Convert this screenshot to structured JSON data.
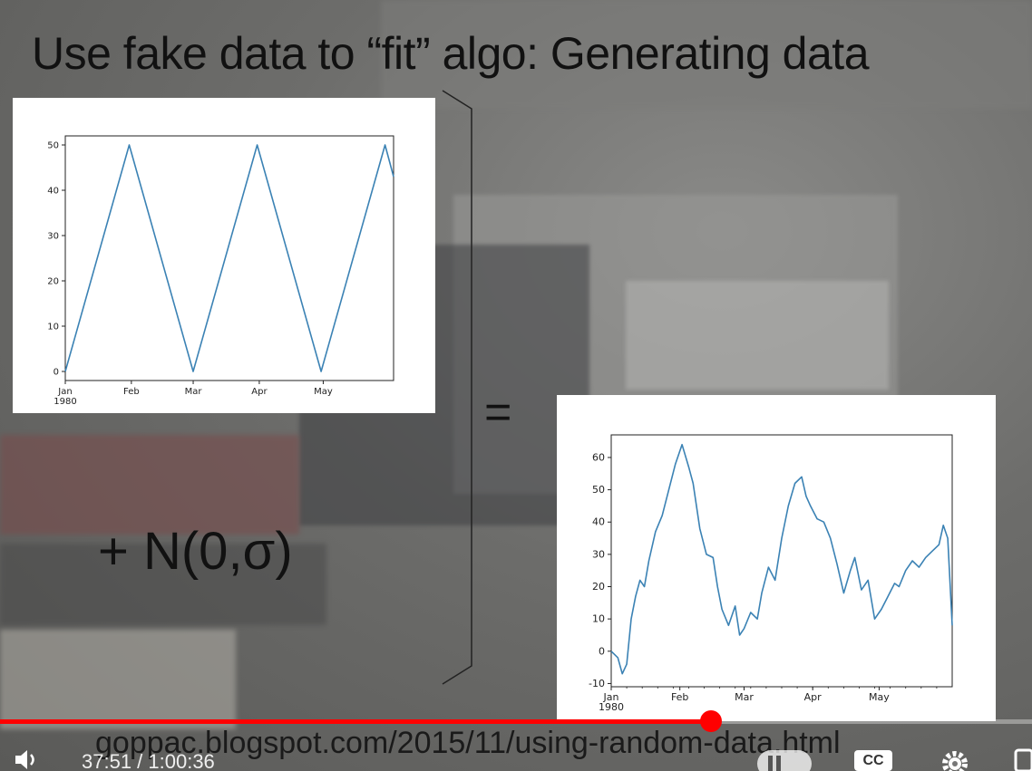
{
  "slide": {
    "title": "Use fake data to “fit” algo: Generating data",
    "equals_sign": "=",
    "noise_term": "+ N(0,σ)",
    "url": "goppac.blogspot.com/2015/11/using-random-data.html"
  },
  "player": {
    "time_display": "37:51 / 1:00:36",
    "progress_fraction": 0.689,
    "progress_color": "#ff0000",
    "icons": [
      "volume-icon",
      "pause-icon",
      "captions-icon",
      "settings-gear-icon",
      "fullscreen-icon"
    ],
    "captions_label": "CC"
  },
  "chart_data": [
    {
      "type": "line",
      "x_tick_labels": [
        "Jan\n1980",
        "Feb",
        "Mar",
        "Apr",
        "May"
      ],
      "y_ticks": [
        0,
        10,
        20,
        30,
        40,
        50
      ],
      "ylim": [
        -2,
        52
      ],
      "xlim_days": [
        0,
        154
      ],
      "series": [
        {
          "x": [
            0,
            30,
            60,
            90,
            120,
            150,
            154
          ],
          "y": [
            0,
            50,
            0,
            50,
            0,
            50,
            43
          ]
        }
      ],
      "line_color": "#3b82b4",
      "grid": false
    },
    {
      "type": "line",
      "x_tick_labels": [
        "Jan\n1980",
        "Feb",
        "Mar",
        "Apr",
        "May"
      ],
      "y_ticks": [
        -10,
        0,
        10,
        20,
        30,
        40,
        50,
        60
      ],
      "ylim": [
        -11,
        67
      ],
      "xlim_days": [
        0,
        154
      ],
      "series": [
        {
          "x": [
            0,
            3,
            5,
            7,
            9,
            11,
            13,
            15,
            17,
            20,
            23,
            26,
            29,
            32,
            35,
            37,
            40,
            43,
            46,
            48,
            50,
            53,
            56,
            58,
            60,
            63,
            66,
            68,
            71,
            74,
            77,
            80,
            83,
            86,
            88,
            90,
            93,
            96,
            99,
            102,
            105,
            108,
            110,
            113,
            116,
            119,
            122,
            125,
            128,
            130,
            133,
            136,
            139,
            142,
            145,
            148,
            150,
            152,
            154
          ],
          "y": [
            0,
            -2,
            -7,
            -4,
            10,
            17,
            22,
            20,
            28,
            37,
            42,
            50,
            58,
            64,
            57,
            52,
            38,
            30,
            29,
            20,
            13,
            8,
            14,
            5,
            7,
            12,
            10,
            18,
            26,
            22,
            35,
            45,
            52,
            54,
            48,
            45,
            41,
            40,
            35,
            27,
            18,
            25,
            29,
            19,
            22,
            10,
            13,
            17,
            21,
            20,
            25,
            28,
            26,
            29,
            31,
            33,
            39,
            35,
            8
          ]
        }
      ],
      "line_color": "#3b82b4",
      "grid": false
    }
  ]
}
